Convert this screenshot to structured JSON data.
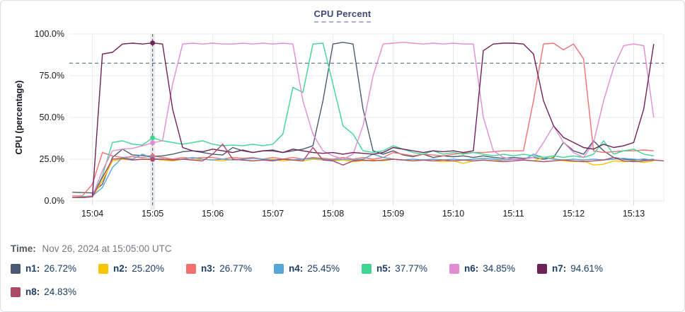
{
  "chart": {
    "title": "CPU Percent",
    "y_axis": {
      "label": "CPU (percentage)",
      "ticks": [
        "100.0%",
        "75.0%",
        "50.0%",
        "25.0%",
        "0.0%"
      ]
    },
    "x_axis": {
      "ticks": [
        "15:04",
        "15:05",
        "15:06",
        "15:07",
        "15:08",
        "15:09",
        "15:10",
        "15:11",
        "15:12",
        "15:13"
      ]
    },
    "threshold_percent": 82.5,
    "crosshair_time": "15:05:00"
  },
  "chart_data": {
    "type": "line",
    "title": "CPU Percent",
    "xlabel": "",
    "ylabel": "CPU (percentage)",
    "ylim": [
      0,
      100
    ],
    "grid": true,
    "x_start": "15:03:40",
    "x_step_seconds": 10,
    "x_ticks": [
      "15:04",
      "15:05",
      "15:06",
      "15:07",
      "15:08",
      "15:09",
      "15:10",
      "15:11",
      "15:12",
      "15:13"
    ],
    "threshold_percent": 82.5,
    "cursor": {
      "time": "15:05:00",
      "sample_index": 8
    },
    "series": [
      {
        "name": "n1",
        "color": "#4a5b73",
        "value_at_cursor": 26.72,
        "values": [
          5.2,
          5.0,
          4.8,
          10,
          26,
          31,
          27.5,
          27.2,
          26.72,
          27,
          28,
          29.5,
          30,
          29,
          28,
          27.5,
          32,
          30,
          29,
          30,
          30.5,
          29,
          30,
          31,
          33,
          60,
          94,
          95,
          94,
          55,
          30,
          28,
          30,
          27.5,
          26.5,
          28,
          26,
          27,
          26.5,
          27,
          26,
          27,
          26,
          25.5,
          26,
          25.5,
          26,
          25,
          26,
          35,
          30,
          28,
          36,
          30,
          26,
          25,
          24.5,
          25,
          24.5
        ]
      },
      {
        "name": "n2",
        "color": "#f6c500",
        "value_at_cursor": 25.2,
        "values": [
          2,
          2,
          2.5,
          12,
          24,
          25,
          24.5,
          25,
          25.2,
          24.5,
          24,
          25,
          24.5,
          25,
          24.5,
          24,
          25,
          24.5,
          24,
          24.5,
          25,
          24,
          24.5,
          24,
          25,
          24.5,
          24,
          24.5,
          23.5,
          24,
          24.5,
          24,
          25,
          24.5,
          24,
          24.5,
          24,
          23.5,
          24,
          22.5,
          24,
          24.5,
          24,
          24.5,
          25,
          24.5,
          24,
          26,
          25.5,
          24,
          23.5,
          24,
          21.5,
          22,
          24,
          23.5,
          24,
          23,
          24
        ]
      },
      {
        "name": "n3",
        "color": "#f2706d",
        "value_at_cursor": 26.77,
        "values": [
          3,
          3,
          10,
          29,
          27,
          26,
          26.5,
          26,
          26.77,
          26,
          25,
          26,
          25.5,
          26,
          26,
          25,
          26,
          25.5,
          26,
          25,
          26,
          25,
          26,
          25,
          26,
          25.5,
          25,
          26,
          25,
          26,
          25,
          26,
          29,
          28,
          27,
          28,
          27.5,
          27,
          28,
          28.5,
          29,
          29,
          29.5,
          30,
          30,
          30,
          60,
          94,
          94.5,
          90.5,
          94,
          85,
          30,
          29,
          29.5,
          30,
          30,
          30.5,
          30
        ]
      },
      {
        "name": "n4",
        "color": "#57a5d8",
        "value_at_cursor": 25.45,
        "values": [
          2,
          2.5,
          3,
          8,
          20,
          26,
          25,
          28,
          25.45,
          25,
          24.5,
          25,
          26,
          25,
          24.5,
          25,
          24.5,
          25,
          25.5,
          25,
          24.5,
          25,
          24.5,
          25,
          25.5,
          25,
          24.5,
          25,
          24.5,
          25,
          28,
          26,
          25,
          24.5,
          25,
          24.5,
          25,
          24.5,
          25,
          24.5,
          25,
          25.5,
          25,
          24.5,
          25,
          24.5,
          28,
          26,
          25,
          24.5,
          25,
          24.5,
          25,
          24.5,
          25,
          25.5,
          25,
          24.5,
          25
        ]
      },
      {
        "name": "n5",
        "color": "#3ed492",
        "value_at_cursor": 37.77,
        "values": [
          2,
          2.5,
          3,
          15,
          35,
          36,
          34,
          33.5,
          37.77,
          36,
          35,
          34,
          35,
          36,
          34,
          33,
          33.5,
          33,
          34,
          33,
          34,
          40,
          68,
          65,
          94,
          94.5,
          70,
          45,
          40,
          30,
          29,
          30,
          33,
          31,
          29,
          28,
          30,
          28,
          29,
          28,
          29,
          28,
          27,
          28,
          27,
          28,
          27,
          26,
          27,
          26,
          27,
          26,
          28,
          36,
          28,
          30,
          31,
          28,
          27
        ]
      },
      {
        "name": "n6",
        "color": "#e08cd2",
        "value_at_cursor": 34.85,
        "values": [
          2,
          2,
          3,
          18,
          30,
          31,
          31.5,
          33,
          34.85,
          36,
          70,
          94,
          94.5,
          94,
          94.5,
          94,
          94,
          94.5,
          94,
          94.5,
          94,
          94.5,
          94,
          60,
          40,
          30,
          27,
          25,
          28,
          45,
          75,
          94,
          94.5,
          95,
          94.5,
          94,
          94.5,
          94,
          94.5,
          94,
          94,
          50,
          30,
          26,
          25,
          25,
          26,
          35,
          45,
          35,
          29,
          26,
          35,
          60,
          80,
          93,
          94,
          93,
          50
        ]
      },
      {
        "name": "n7",
        "color": "#6f2158",
        "value_at_cursor": 94.61,
        "values": [
          2,
          2,
          2.5,
          88,
          89,
          94,
          94.5,
          94,
          94.61,
          94,
          55,
          32,
          30,
          29.5,
          31,
          30,
          29,
          30.5,
          29,
          30,
          30,
          29,
          31,
          30,
          29,
          28.5,
          29,
          28,
          29,
          28.5,
          28,
          29,
          32,
          31,
          30,
          29,
          30,
          29.5,
          30,
          29,
          30,
          90,
          94,
          94.5,
          94.5,
          94,
          88,
          60,
          45,
          38,
          35,
          32,
          31,
          34,
          32,
          33,
          35,
          55,
          94
        ]
      },
      {
        "name": "n8",
        "color": "#ad4a68",
        "value_at_cursor": 24.83,
        "values": [
          2,
          2,
          2.5,
          14,
          25,
          25.5,
          24.5,
          25,
          24.83,
          25,
          24.5,
          25,
          24.5,
          24,
          28,
          34,
          25,
          24.5,
          24,
          24.5,
          24,
          25,
          24.5,
          24,
          32,
          24.5,
          24,
          21.5,
          24,
          24.5,
          24,
          24.5,
          25,
          24.5,
          24,
          24.5,
          24,
          24.5,
          24,
          24.5,
          24,
          24.5,
          24,
          23.5,
          24,
          24.5,
          24,
          23.5,
          24,
          24.5,
          24,
          23.5,
          24,
          24.5,
          26,
          24,
          23.5,
          24,
          24.5,
          24
        ]
      }
    ]
  },
  "time_row": {
    "label": "Time:",
    "value": "Nov 26, 2024 at 15:05:00 UTC"
  },
  "legend": {
    "items": [
      {
        "label": "n1:",
        "value": "26.72%",
        "color": "#4a5b73"
      },
      {
        "label": "n2:",
        "value": "25.20%",
        "color": "#f6c500"
      },
      {
        "label": "n3:",
        "value": "26.77%",
        "color": "#f2706d"
      },
      {
        "label": "n4:",
        "value": "25.45%",
        "color": "#57a5d8"
      },
      {
        "label": "n5:",
        "value": "37.77%",
        "color": "#3ed492"
      },
      {
        "label": "n6:",
        "value": "34.85%",
        "color": "#e08cd2"
      },
      {
        "label": "n7:",
        "value": "94.61%",
        "color": "#6f2158"
      },
      {
        "label": "n8:",
        "value": "24.83%",
        "color": "#ad4a68"
      }
    ]
  },
  "colors": {
    "title": "#3e4a7a",
    "threshold_line": "#4e7387",
    "crosshair_line": "#4e7387",
    "grid": "#e9e9e9",
    "axis_text": "#1a1a1a",
    "legend_text": "#1c3c63"
  }
}
